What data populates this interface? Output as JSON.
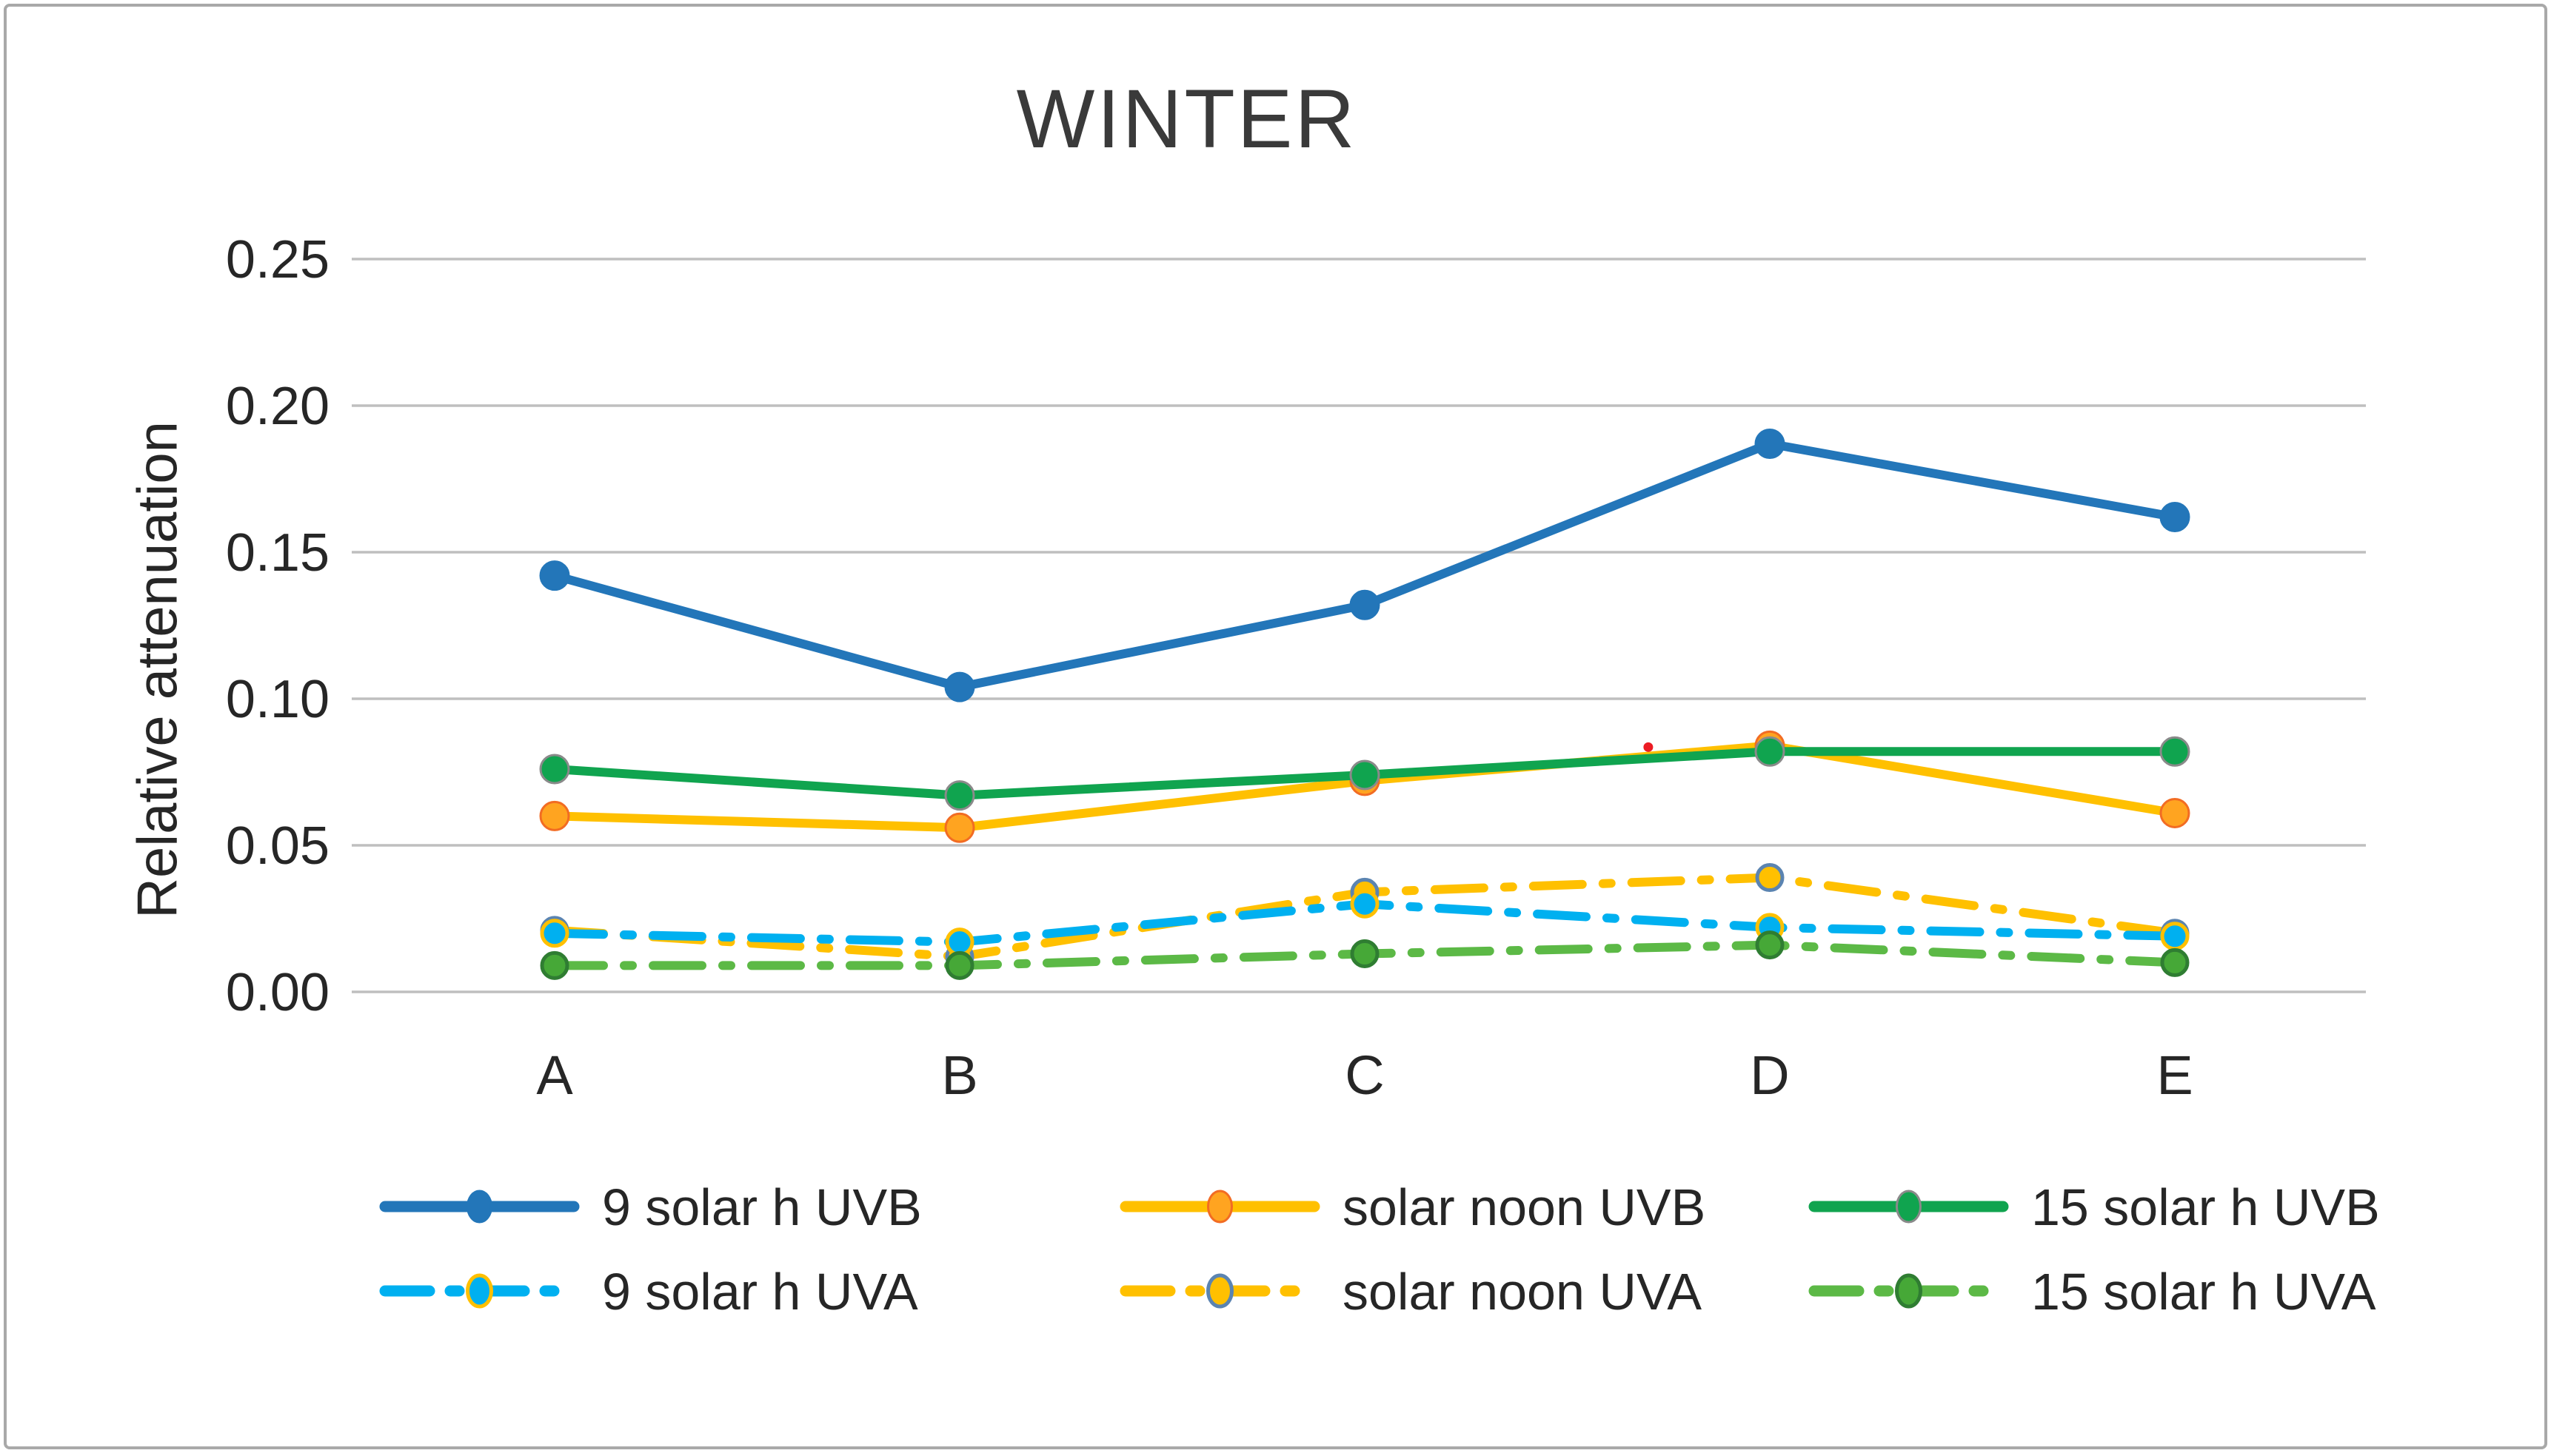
{
  "title": "WINTER",
  "y_axis": {
    "label": "Relative attenuation",
    "ticks": [
      "0.25",
      "0.20",
      "0.15",
      "0.10",
      "0.05",
      "0.00"
    ],
    "min": 0.0,
    "max": 0.25,
    "step": 0.05
  },
  "x_axis": {
    "categories": [
      "A",
      "B",
      "C",
      "D",
      "E"
    ]
  },
  "colors": {
    "gridline": "#BFBFBF",
    "border": "#A9A9A9",
    "title_text": "#3A3A3A",
    "axis_text": "#262626",
    "outlier_red": "#EC1C24"
  },
  "chart_data": {
    "type": "line",
    "title": "WINTER",
    "xlabel": "",
    "ylabel": "Relative attenuation",
    "ylim": [
      0.0,
      0.25
    ],
    "grid": "horizontal",
    "legend_position": "bottom",
    "categories": [
      "A",
      "B",
      "C",
      "D",
      "E"
    ],
    "series": [
      {
        "name": "9 solar h UVB",
        "band": "UVB",
        "line_style": "solid",
        "line_color": "#2376B9",
        "marker_fill": "#2376B9",
        "marker_stroke": "#2376B9",
        "values": [
          0.142,
          0.104,
          0.132,
          0.187,
          0.162
        ]
      },
      {
        "name": "solar noon UVB",
        "band": "UVB",
        "line_style": "solid",
        "line_color": "#FFC000",
        "marker_fill": "#FFA420",
        "marker_stroke": "#F26C23",
        "values": [
          0.06,
          0.056,
          0.072,
          0.084,
          0.061
        ]
      },
      {
        "name": "15 solar h UVB",
        "band": "UVB",
        "line_style": "solid",
        "line_color": "#10A44F",
        "marker_fill": "#10A44F",
        "marker_stroke": "#8A8A8A",
        "values": [
          0.076,
          0.067,
          0.074,
          0.082,
          0.082
        ]
      },
      {
        "name": "9 solar h UVA",
        "band": "UVA",
        "line_style": "dash-dot",
        "line_color": "#00B0F0",
        "marker_fill": "#00B0F0",
        "marker_stroke": "#FFC000",
        "values": [
          0.02,
          0.017,
          0.03,
          0.022,
          0.019
        ]
      },
      {
        "name": "solar noon UVA",
        "band": "UVA",
        "line_style": "dash-dot",
        "line_color": "#FFC000",
        "marker_fill": "#FFC000",
        "marker_stroke": "#5B84B1",
        "values": [
          0.021,
          0.012,
          0.034,
          0.039,
          0.02
        ]
      },
      {
        "name": "15 solar h UVA",
        "band": "UVA",
        "line_style": "dash-dot",
        "line_color": "#5CB946",
        "marker_fill": "#46A837",
        "marker_stroke": "#2F7D32",
        "values": [
          0.009,
          0.009,
          0.013,
          0.016,
          0.01
        ]
      }
    ],
    "outlier_point": {
      "color": "#EC1C24",
      "x_category_position": 2.7,
      "between": [
        "C",
        "D"
      ],
      "value": 0.0835
    }
  },
  "legend": {
    "rows": [
      [
        "9 solar h UVB",
        "solar noon UVB",
        "15 solar h UVB"
      ],
      [
        "9 solar h UVA",
        "solar noon UVA",
        "15 solar h UVA"
      ]
    ]
  }
}
